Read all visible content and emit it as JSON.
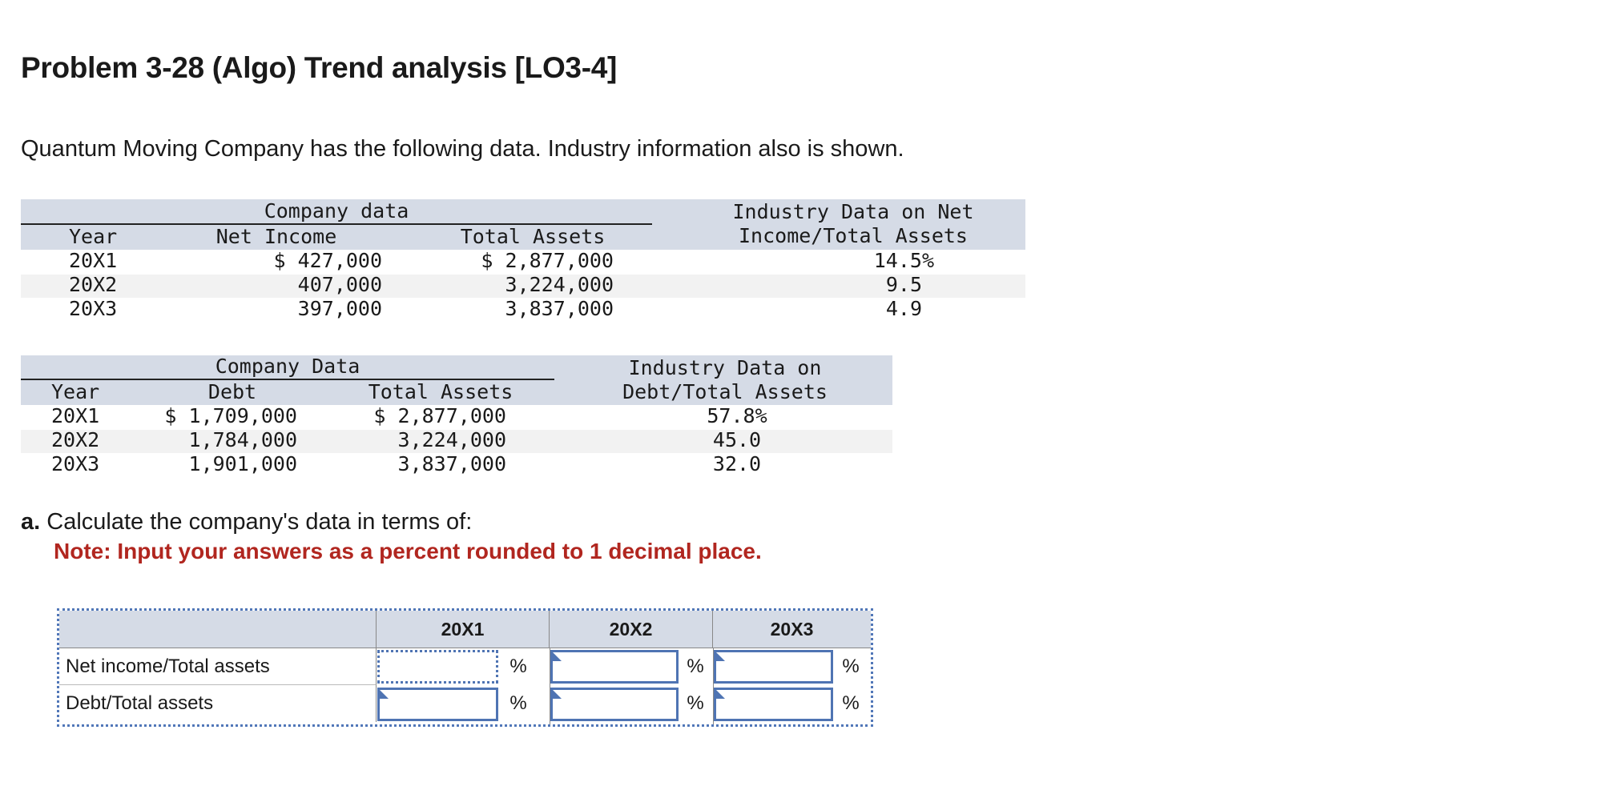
{
  "title": "Problem 3-28 (Algo) Trend analysis [LO3-4]",
  "intro": "Quantum Moving Company has the following data. Industry information also is shown.",
  "table1": {
    "group_header": "Company data",
    "industry_header_line1": "Industry Data on Net",
    "industry_header_line2": "Income/Total Assets",
    "col_year": "Year",
    "col_net_income": "Net Income",
    "col_total_assets": "Total Assets",
    "rows": [
      {
        "year": "20X1",
        "net_income": "$ 427,000",
        "total_assets": "$ 2,877,000",
        "industry": "14.5%"
      },
      {
        "year": "20X2",
        "net_income": "407,000",
        "total_assets": "3,224,000",
        "industry": "9.5"
      },
      {
        "year": "20X3",
        "net_income": "397,000",
        "total_assets": "3,837,000",
        "industry": "4.9"
      }
    ]
  },
  "table2": {
    "group_header": "Company Data",
    "industry_header_line1": "Industry Data on",
    "industry_header_line2": "Debt/Total Assets",
    "col_year": "Year",
    "col_debt": "Debt",
    "col_total_assets": "Total Assets",
    "rows": [
      {
        "year": "20X1",
        "debt": "$ 1,709,000",
        "total_assets": "$ 2,877,000",
        "industry": "57.8%"
      },
      {
        "year": "20X2",
        "debt": "1,784,000",
        "total_assets": "3,224,000",
        "industry": "45.0"
      },
      {
        "year": "20X3",
        "debt": "1,901,000",
        "total_assets": "3,837,000",
        "industry": "32.0"
      }
    ]
  },
  "part_a": {
    "letter": "a.",
    "text": "Calculate the company's data in terms of:",
    "note": "Note: Input your answers as a percent rounded to 1 decimal place."
  },
  "answer_table": {
    "headers": [
      "20X1",
      "20X2",
      "20X3"
    ],
    "rows": [
      {
        "label": "Net income/Total assets",
        "values": [
          "",
          "",
          ""
        ],
        "unit": "%"
      },
      {
        "label": "Debt/Total assets",
        "values": [
          "",
          "",
          ""
        ],
        "unit": "%"
      }
    ]
  },
  "colors": {
    "header_band": "#d5dbe6",
    "note_red": "#b1261f",
    "input_border": "#4f74b3"
  }
}
